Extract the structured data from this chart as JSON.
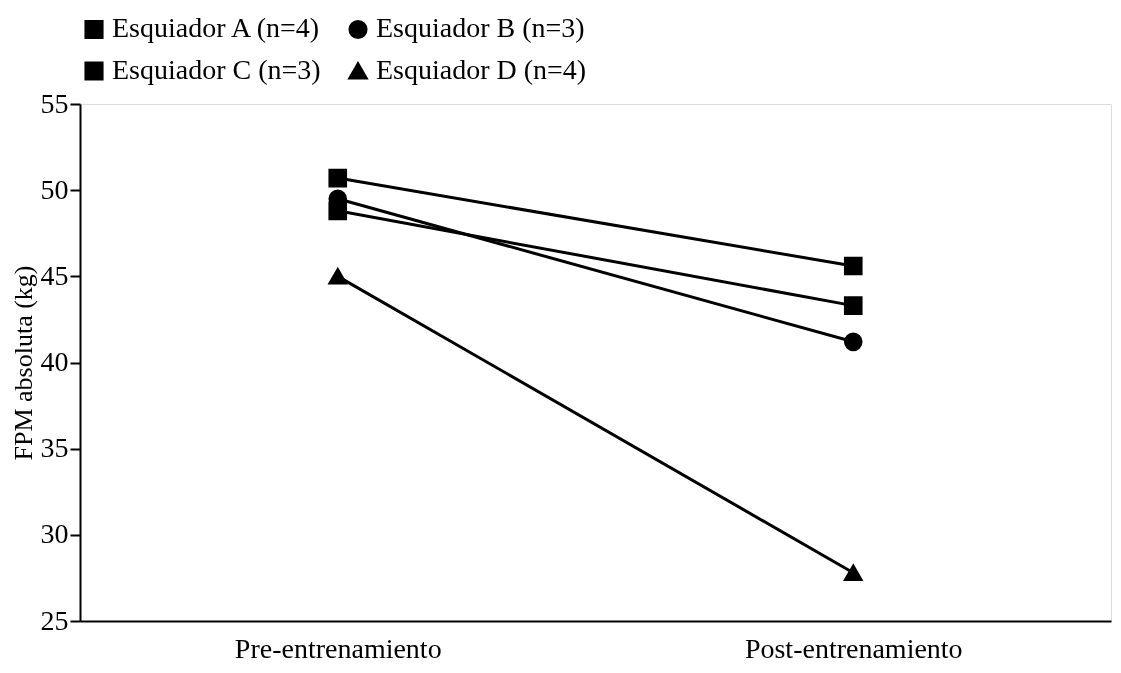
{
  "chart_data": {
    "type": "line",
    "ylabel": "FPM absoluta (kg)",
    "categories": [
      "Pre-entrenamiento",
      "Post-entrenamiento"
    ],
    "series": [
      {
        "name": "Esquiador A (n=4)",
        "color": "#000000",
        "marker": "square",
        "values": [
          50.7,
          45.6
        ]
      },
      {
        "name": "Esquiador B (n=3)",
        "color": "#000000",
        "marker": "circle",
        "values": [
          49.5,
          41.2
        ]
      },
      {
        "name": "Esquiador C (n=3)",
        "color": "#000000",
        "marker": "square",
        "values": [
          48.8,
          43.3
        ]
      },
      {
        "name": "Esquiador D (n=4)",
        "color": "#000000",
        "marker": "triangle",
        "values": [
          45.0,
          27.8
        ]
      }
    ],
    "ylim": [
      25,
      55
    ],
    "yticks": [
      25,
      30,
      35,
      40,
      45,
      50,
      55
    ],
    "grid": false,
    "legend": "top",
    "line_style": "solid"
  }
}
